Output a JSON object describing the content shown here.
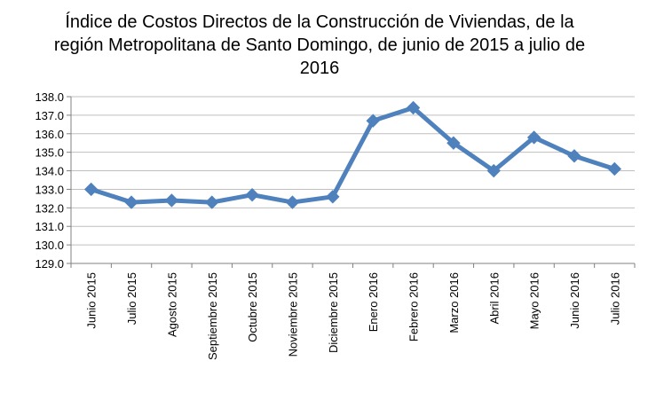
{
  "chart_data": {
    "type": "line",
    "title": "Índice de Costos Directos de la Construcción de Viviendas, de la región Metropolitana de Santo Domingo, de junio de 2015 a julio de 2016",
    "xlabel": "",
    "ylabel": "",
    "ylim": [
      129.0,
      138.0
    ],
    "yticks": [
      "129.0",
      "130.0",
      "131.0",
      "132.0",
      "133.0",
      "134.0",
      "135.0",
      "136.0",
      "137.0",
      "138.0"
    ],
    "grid": true,
    "legend": "none",
    "categories": [
      "Junio 2015",
      "Julio 2015",
      "Agosto 2015",
      "Septiembre 2015",
      "Octubre 2015",
      "Noviembre 2015",
      "Diciembre 2015",
      "Enero 2016",
      "Febrero 2016",
      "Marzo 2016",
      "Abril 2016",
      "Mayo 2016",
      "Junio 2016",
      "Julio 2016"
    ],
    "series": [
      {
        "values": [
          133.0,
          132.3,
          132.4,
          132.3,
          132.7,
          132.3,
          132.6,
          136.7,
          137.4,
          135.5,
          134.0,
          135.8,
          134.8,
          134.1
        ]
      }
    ],
    "colors": {
      "line": "#4F81BD",
      "grid": "#BFBFBF",
      "axis": "#808080"
    }
  }
}
